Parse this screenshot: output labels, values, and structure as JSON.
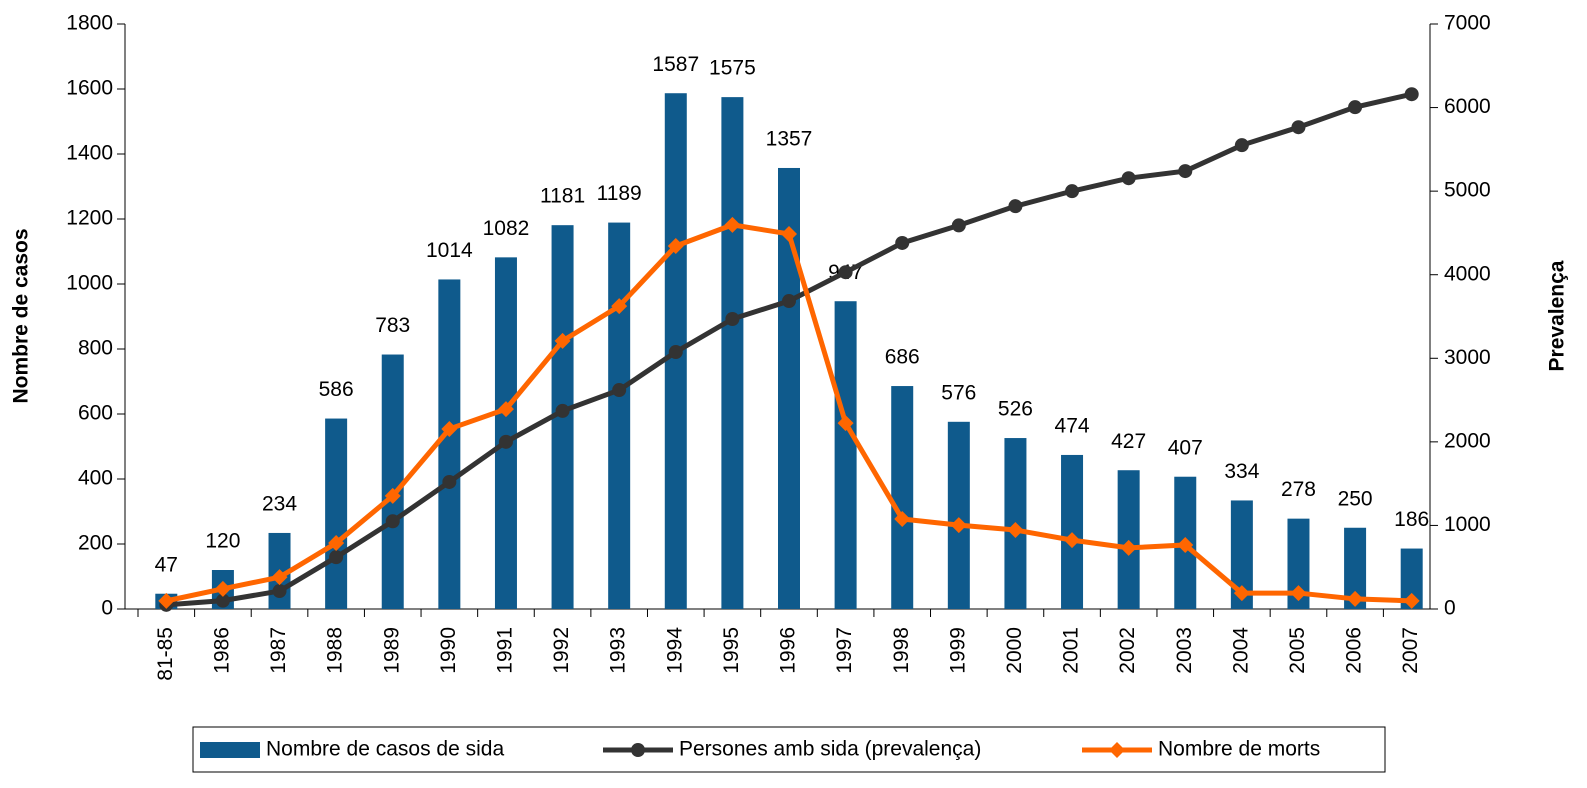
{
  "chart_data": {
    "type": "bar",
    "ylabel": "Nombre de casos",
    "y2label": "Prevalença",
    "categories": [
      "81-85",
      "1986",
      "1987",
      "1988",
      "1989",
      "1990",
      "1991",
      "1992",
      "1993",
      "1994",
      "1995",
      "1996",
      "1997",
      "1998",
      "1999",
      "2000",
      "2001",
      "2002",
      "2003",
      "2004",
      "2005",
      "2006",
      "2007"
    ],
    "series": [
      {
        "name": "Nombre de casos de sida",
        "type": "bar",
        "color": "#0f5a8c",
        "show_values": true,
        "values": [
          47,
          120,
          234,
          586,
          783,
          1014,
          1082,
          1181,
          1189,
          1587,
          1575,
          1357,
          947,
          686,
          576,
          526,
          474,
          427,
          407,
          334,
          278,
          250,
          186
        ]
      },
      {
        "name": "Persones amb sida (prevalença)",
        "type": "line",
        "marker": "circle",
        "color": "#333333",
        "axis": "y2",
        "values": [
          50,
          100,
          215,
          620,
          1050,
          1520,
          2000,
          2370,
          2620,
          3075,
          3470,
          3685,
          4030,
          4380,
          4590,
          4820,
          5000,
          5155,
          5240,
          5550,
          5765,
          6005,
          6160
        ]
      },
      {
        "name": "Nombre de morts",
        "type": "line",
        "marker": "diamond",
        "color": "#ff6600",
        "values": [
          25,
          62,
          98,
          203,
          348,
          554,
          615,
          825,
          932,
          1117,
          1182,
          1154,
          572,
          277,
          258,
          243,
          212,
          188,
          197,
          49,
          49,
          31,
          25
        ]
      }
    ],
    "ylim": [
      0,
      1800
    ],
    "yticks": [
      0,
      200,
      400,
      600,
      800,
      1000,
      1200,
      1400,
      1600,
      1800
    ],
    "y2lim": [
      0,
      7000
    ],
    "y2ticks": [
      0,
      1000,
      2000,
      3000,
      4000,
      5000,
      6000,
      7000
    ],
    "legend": "bottom"
  }
}
